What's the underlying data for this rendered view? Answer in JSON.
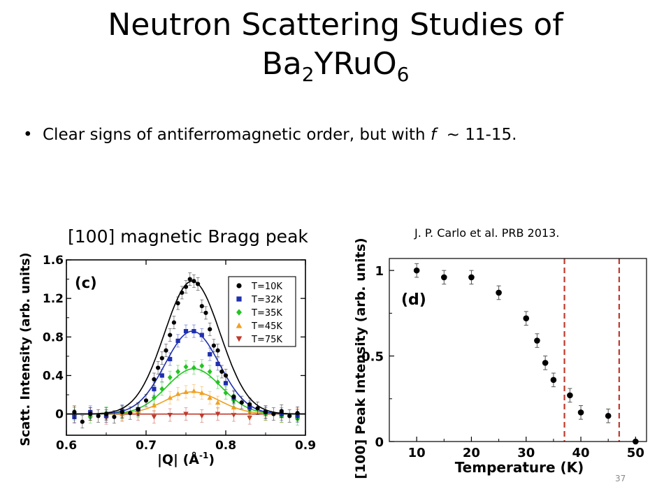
{
  "slide": {
    "title_line1": "Neutron Scattering Studies of",
    "title_line2_base": "Ba",
    "title_sub1": "2",
    "title_mid": "YRuO",
    "title_sub2": "6",
    "bullet_char": "•",
    "bullet_text_before": "Clear signs of antiferromagnetic order, but with ",
    "bullet_symbol": "f",
    "bullet_text_after": "  ~ 11-15.",
    "caption_left": "[100] magnetic Bragg peak",
    "caption_right": "J. P. Carlo et al. PRB 2013.",
    "slide_number": "37"
  },
  "chart_data": [
    {
      "type": "scatter",
      "panel_label": "(c)",
      "xlabel_text": "|Q| (Å",
      "xlabel_sup": "-1",
      "xlabel_close": ")",
      "ylabel": "Scatt. Intensity (arb. units)",
      "xlim": [
        0.6,
        0.9
      ],
      "ylim": [
        -0.22,
        1.6
      ],
      "xticks": [
        0.6,
        0.7,
        0.8,
        0.9
      ],
      "xtick_labels": [
        "0.6",
        "0.7",
        "0.8",
        "0.9"
      ],
      "yticks": [
        0,
        0.4,
        0.8,
        1.2,
        1.6
      ],
      "ytick_labels": [
        "0",
        "0.4",
        "0.8",
        "1.2",
        "1.6"
      ],
      "legend_position": "top-right",
      "grid": false,
      "fit": "gaussian",
      "series": [
        {
          "name": "T=10K",
          "color": "#000000",
          "marker": "circle",
          "x": [
            0.61,
            0.62,
            0.63,
            0.64,
            0.65,
            0.66,
            0.67,
            0.68,
            0.69,
            0.7,
            0.71,
            0.715,
            0.72,
            0.725,
            0.73,
            0.735,
            0.74,
            0.745,
            0.75,
            0.755,
            0.76,
            0.765,
            0.77,
            0.775,
            0.78,
            0.785,
            0.79,
            0.795,
            0.8,
            0.81,
            0.82,
            0.83,
            0.84,
            0.85,
            0.86,
            0.87,
            0.88,
            0.89
          ],
          "y": [
            0.02,
            -0.08,
            0.0,
            -0.02,
            0.0,
            -0.03,
            0.02,
            0.01,
            0.05,
            0.14,
            0.36,
            0.48,
            0.58,
            0.66,
            0.82,
            0.95,
            1.15,
            1.26,
            1.32,
            1.4,
            1.38,
            1.35,
            1.12,
            1.05,
            0.88,
            0.71,
            0.66,
            0.44,
            0.4,
            0.18,
            0.12,
            0.1,
            0.06,
            0.02,
            0.0,
            0.03,
            -0.02,
            0.01
          ],
          "fit": {
            "amplitude": 1.38,
            "center": 0.758,
            "sigma": 0.035
          }
        },
        {
          "name": "T=32K",
          "color": "#1f2fb0",
          "marker": "square",
          "x": [
            0.61,
            0.63,
            0.65,
            0.67,
            0.69,
            0.71,
            0.72,
            0.73,
            0.74,
            0.75,
            0.76,
            0.77,
            0.78,
            0.79,
            0.8,
            0.81,
            0.83,
            0.85,
            0.87,
            0.89
          ],
          "y": [
            -0.03,
            0.02,
            -0.02,
            0.03,
            0.05,
            0.26,
            0.4,
            0.57,
            0.76,
            0.86,
            0.86,
            0.82,
            0.62,
            0.52,
            0.32,
            0.17,
            0.07,
            0.02,
            0.0,
            -0.02
          ],
          "fit": {
            "amplitude": 0.86,
            "center": 0.758,
            "sigma": 0.034
          }
        },
        {
          "name": "T=35K",
          "color": "#22c422",
          "marker": "diamond",
          "x": [
            0.61,
            0.63,
            0.65,
            0.67,
            0.69,
            0.71,
            0.72,
            0.73,
            0.74,
            0.75,
            0.76,
            0.77,
            0.78,
            0.79,
            0.8,
            0.81,
            0.83,
            0.85,
            0.87,
            0.89
          ],
          "y": [
            0.0,
            -0.03,
            0.01,
            0.02,
            0.04,
            0.17,
            0.26,
            0.38,
            0.44,
            0.49,
            0.48,
            0.5,
            0.44,
            0.33,
            0.22,
            0.14,
            0.05,
            0.0,
            -0.02,
            -0.05
          ],
          "fit": {
            "amplitude": 0.47,
            "center": 0.76,
            "sigma": 0.034
          }
        },
        {
          "name": "T=45K",
          "color": "#f0a020",
          "marker": "triangle-up",
          "x": [
            0.61,
            0.63,
            0.65,
            0.67,
            0.69,
            0.71,
            0.73,
            0.74,
            0.75,
            0.76,
            0.77,
            0.78,
            0.79,
            0.81,
            0.83,
            0.85,
            0.87,
            0.89
          ],
          "y": [
            0.01,
            0.0,
            -0.02,
            0.0,
            0.03,
            0.09,
            0.17,
            0.21,
            0.23,
            0.24,
            0.22,
            0.17,
            0.12,
            0.07,
            0.02,
            0.0,
            -0.02,
            0.0
          ],
          "fit": {
            "amplitude": 0.23,
            "center": 0.758,
            "sigma": 0.034
          }
        },
        {
          "name": "T=75K",
          "color": "#c0392b",
          "marker": "triangle-down",
          "x": [
            0.61,
            0.63,
            0.65,
            0.67,
            0.69,
            0.71,
            0.73,
            0.75,
            0.77,
            0.79,
            0.81,
            0.83,
            0.85,
            0.87,
            0.89
          ],
          "y": [
            -0.02,
            0.0,
            -0.04,
            -0.01,
            0.0,
            -0.03,
            -0.01,
            0.0,
            -0.02,
            0.0,
            -0.01,
            -0.04,
            0.0,
            -0.02,
            -0.01
          ],
          "fit": {
            "amplitude": 0.0,
            "center": 0.758,
            "sigma": 0.034
          }
        }
      ]
    },
    {
      "type": "scatter",
      "panel_label": "(d)",
      "xlabel": "Temperature (K)",
      "ylabel": "[100] Peak Intensity (arb. units)",
      "xlim": [
        5,
        52
      ],
      "ylim": [
        0,
        1.07
      ],
      "xticks": [
        10,
        20,
        30,
        40,
        50
      ],
      "xtick_labels": [
        "10",
        "20",
        "30",
        "40",
        "50"
      ],
      "yticks": [
        0,
        0.5,
        1
      ],
      "ytick_labels": [
        "0",
        "0.5",
        "1"
      ],
      "grid": false,
      "vertical_dashed_lines_x": [
        37,
        47
      ],
      "dashed_line_color": "#c0392b",
      "series": [
        {
          "color": "#000000",
          "marker": "circle",
          "x": [
            10,
            15,
            20,
            25,
            30,
            32,
            33.5,
            35,
            38,
            40,
            45,
            50
          ],
          "y": [
            1.0,
            0.96,
            0.96,
            0.87,
            0.72,
            0.59,
            0.46,
            0.36,
            0.27,
            0.17,
            0.15,
            0.0
          ],
          "err": [
            0.04,
            0.04,
            0.04,
            0.04,
            0.04,
            0.04,
            0.04,
            0.04,
            0.04,
            0.04,
            0.04,
            0.0
          ]
        }
      ]
    }
  ]
}
